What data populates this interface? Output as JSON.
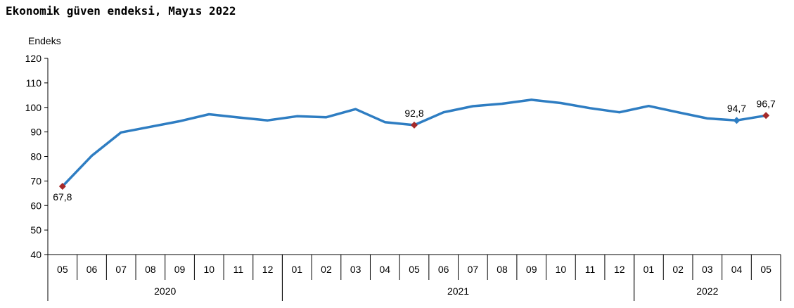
{
  "title": "Ekonomik güven endeksi, Mayıs 2022",
  "chart_data": {
    "type": "line",
    "title": "Ekonomik güven endeksi, Mayıs 2022",
    "ylabel": "Endeks",
    "xlabel": "",
    "ylim": [
      40,
      120
    ],
    "yticks": [
      40,
      50,
      60,
      70,
      80,
      90,
      100,
      110,
      120
    ],
    "grid": false,
    "categories": [
      "05",
      "06",
      "07",
      "08",
      "09",
      "10",
      "11",
      "12",
      "01",
      "02",
      "03",
      "04",
      "05",
      "06",
      "07",
      "08",
      "09",
      "10",
      "11",
      "12",
      "01",
      "02",
      "03",
      "04",
      "05"
    ],
    "years": [
      {
        "label": "2020",
        "start": 0,
        "end": 7
      },
      {
        "label": "2021",
        "start": 8,
        "end": 19
      },
      {
        "label": "2022",
        "start": 20,
        "end": 24
      }
    ],
    "series": [
      {
        "color": "#2e7dc2",
        "values": [
          67.8,
          80.3,
          89.8,
          92.1,
          94.4,
          97.2,
          95.9,
          94.7,
          96.4,
          96.0,
          99.3,
          94.0,
          92.8,
          98.0,
          100.5,
          101.5,
          103.1,
          101.8,
          99.7,
          98.0,
          100.6,
          98.0,
          95.5,
          94.7,
          96.7
        ]
      }
    ],
    "markers": [
      {
        "index": 0,
        "value": 67.8,
        "label": "67,8",
        "color": "#a52a2a"
      },
      {
        "index": 12,
        "value": 92.8,
        "label": "92,8",
        "color": "#a52a2a"
      },
      {
        "index": 23,
        "value": 94.7,
        "label": "94,7",
        "color": "#2e7dc2"
      },
      {
        "index": 24,
        "value": 96.7,
        "label": "96,7",
        "color": "#a52a2a"
      }
    ]
  }
}
